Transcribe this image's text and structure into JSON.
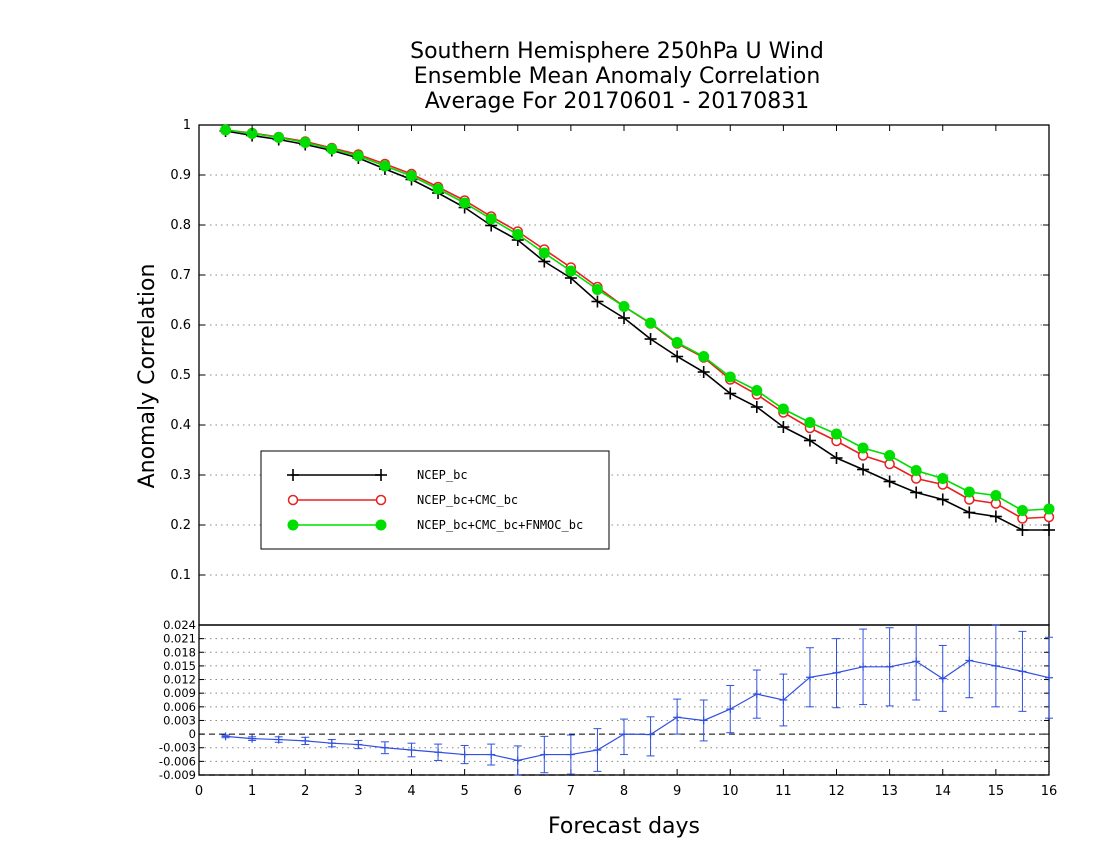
{
  "chart_data": [
    {
      "type": "line",
      "title": [
        "Southern Hemisphere 250hPa U Wind",
        "Ensemble Mean Anomaly Correlation",
        "Average For 20170601 - 20170831"
      ],
      "xlabel": "Forecast days",
      "ylabel": "Anomaly Correlation",
      "xlim": [
        0,
        16
      ],
      "ylim": [
        0,
        1
      ],
      "xticks": [
        "0",
        "1",
        "2",
        "3",
        "4",
        "5",
        "6",
        "7",
        "8",
        "9",
        "10",
        "11",
        "12",
        "13",
        "14",
        "15",
        "16"
      ],
      "yticks": [
        "0.1",
        "0.2",
        "0.3",
        "0.4",
        "0.5",
        "0.6",
        "0.7",
        "0.8",
        "0.9",
        "1"
      ],
      "grid": "horizontal dotted",
      "legend_placement": "center-left",
      "x": [
        0.5,
        1,
        1.5,
        2,
        2.5,
        3,
        3.5,
        4,
        4.5,
        5,
        5.5,
        6,
        6.5,
        7,
        7.5,
        8,
        8.5,
        9,
        9.5,
        10,
        10.5,
        11,
        11.5,
        12,
        12.5,
        13,
        13.5,
        14,
        14.5,
        15,
        15.5,
        16
      ],
      "series": [
        {
          "name": "NCEP_bc",
          "color": "#000000",
          "marker": "plus",
          "values": [
            0.988,
            0.979,
            0.971,
            0.961,
            0.949,
            0.934,
            0.912,
            0.891,
            0.864,
            0.835,
            0.799,
            0.77,
            0.727,
            0.694,
            0.647,
            0.614,
            0.572,
            0.537,
            0.506,
            0.463,
            0.436,
            0.396,
            0.369,
            0.334,
            0.311,
            0.287,
            0.265,
            0.251,
            0.225,
            0.217,
            0.19,
            0.19
          ]
        },
        {
          "name": "NCEP_bc+CMC_bc",
          "color": "#e82020",
          "marker": "open-circle",
          "values": [
            0.99,
            0.984,
            0.976,
            0.967,
            0.954,
            0.941,
            0.922,
            0.902,
            0.876,
            0.849,
            0.817,
            0.787,
            0.751,
            0.715,
            0.676,
            0.637,
            0.603,
            0.563,
            0.535,
            0.491,
            0.461,
            0.425,
            0.394,
            0.368,
            0.339,
            0.322,
            0.293,
            0.281,
            0.251,
            0.243,
            0.213,
            0.216
          ]
        },
        {
          "name": "NCEP_bc+CMC_bc+FNMOC_bc",
          "color": "#00dd00",
          "marker": "filled-circle",
          "values": [
            0.99,
            0.983,
            0.975,
            0.965,
            0.952,
            0.938,
            0.918,
            0.898,
            0.872,
            0.844,
            0.812,
            0.781,
            0.744,
            0.708,
            0.671,
            0.637,
            0.604,
            0.565,
            0.537,
            0.496,
            0.469,
            0.432,
            0.405,
            0.382,
            0.354,
            0.339,
            0.309,
            0.293,
            0.266,
            0.259,
            0.229,
            0.232
          ]
        }
      ]
    },
    {
      "type": "line",
      "xlim": [
        0,
        16
      ],
      "ylim": [
        -0.009,
        0.024
      ],
      "yticks": [
        "-0.009",
        "-0.006",
        "-0.003",
        "0",
        "0.003",
        "0.006",
        "0.009",
        "0.012",
        "0.015",
        "0.018",
        "0.021",
        "0.024"
      ],
      "zero_line": "dashed",
      "grid": "horizontal dotted",
      "series": [
        {
          "name": "",
          "color": "#3050e0",
          "marker": "plus",
          "error_bars": true,
          "x": [
            0.5,
            1,
            1.5,
            2,
            2.5,
            3,
            3.5,
            4,
            4.5,
            5,
            5.5,
            6,
            6.5,
            7,
            7.5,
            8,
            8.5,
            9,
            9.5,
            10,
            10.5,
            11,
            11.5,
            12,
            12.5,
            13,
            13.5,
            14,
            14.5,
            15,
            15.5,
            16
          ],
          "values": [
            -0.0005,
            -0.001,
            -0.0012,
            -0.0015,
            -0.002,
            -0.0023,
            -0.003,
            -0.0035,
            -0.004,
            -0.0045,
            -0.0045,
            -0.0058,
            -0.0045,
            -0.0045,
            -0.0035,
            0.0,
            -0.0001,
            0.0037,
            0.003,
            0.0055,
            0.0088,
            0.0075,
            0.0125,
            0.0135,
            0.0148,
            0.0148,
            0.016,
            0.0122,
            0.0162,
            0.015,
            0.0138,
            0.0124
          ],
          "lower": [
            -0.0008,
            -0.0014,
            -0.0018,
            -0.0023,
            -0.0028,
            -0.0032,
            -0.0043,
            -0.005,
            -0.0058,
            -0.0065,
            -0.0068,
            -0.009,
            -0.0085,
            -0.0088,
            -0.0082,
            -0.0045,
            -0.0048,
            0.0,
            -0.0015,
            0.0003,
            0.0035,
            0.0018,
            0.006,
            0.0058,
            0.0065,
            0.0062,
            0.0075,
            0.005,
            0.008,
            0.006,
            0.005,
            0.0035
          ],
          "upper": [
            -0.0002,
            -0.0006,
            -0.0006,
            -0.0007,
            -0.0012,
            -0.0014,
            -0.0017,
            -0.002,
            -0.0022,
            -0.0025,
            -0.0022,
            -0.0026,
            -0.0005,
            -0.0002,
            0.0012,
            0.0033,
            0.0038,
            0.0077,
            0.0075,
            0.0107,
            0.0141,
            0.0132,
            0.019,
            0.021,
            0.0231,
            0.0234,
            0.0245,
            0.0195,
            0.0245,
            0.024,
            0.0226,
            0.0213
          ]
        }
      ]
    }
  ]
}
